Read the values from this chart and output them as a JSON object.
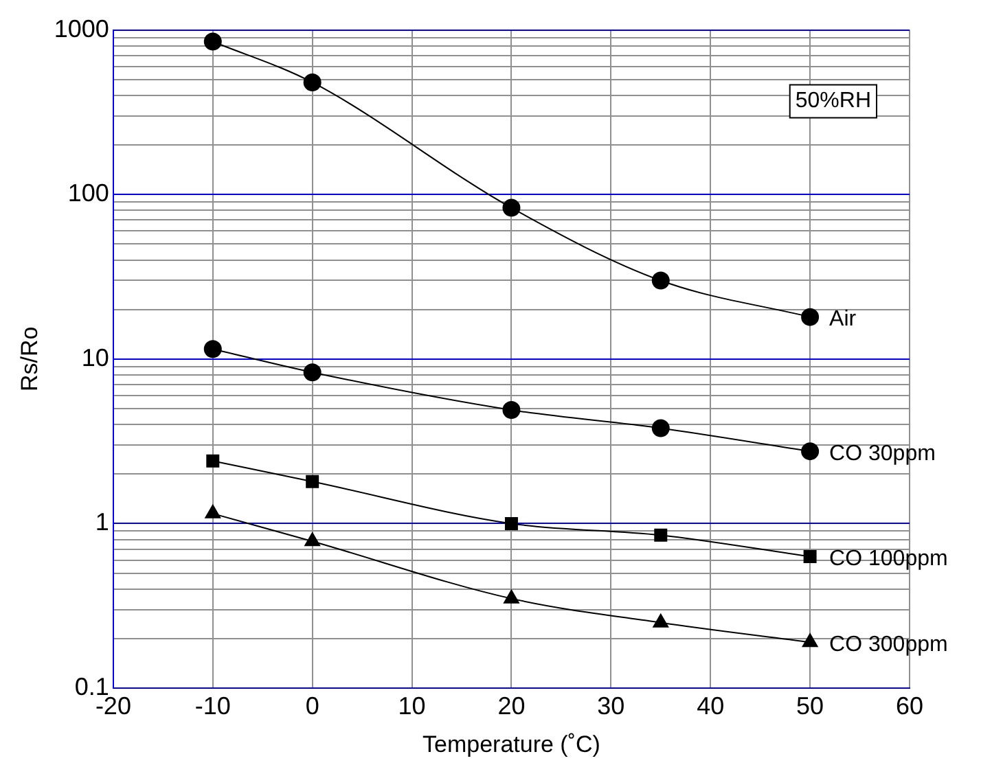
{
  "chart_data": {
    "type": "line",
    "xlabel": "Temperature (˚C)",
    "ylabel": "Rs/Ro",
    "log": "y",
    "grid": true,
    "legend": false,
    "line_style": "solid",
    "x": [
      -10,
      0,
      20,
      35,
      50
    ],
    "xlim": [
      -20,
      60
    ],
    "xticks": [
      -20,
      -10,
      0,
      10,
      20,
      30,
      40,
      50,
      60
    ],
    "ylim": [
      0.1,
      1000
    ],
    "yticks": [
      0.1,
      {
        "value": 0.2,
        "label": null
      },
      {
        "value": 0.3,
        "label": null
      },
      {
        "value": 0.4,
        "label": null
      },
      {
        "value": 0.5,
        "label": null
      },
      {
        "value": 0.6,
        "label": null
      },
      {
        "value": 0.7,
        "label": null
      },
      {
        "value": 0.8,
        "label": null
      },
      {
        "value": 0.9,
        "label": null
      },
      1,
      {
        "value": 2,
        "label": null
      },
      {
        "value": 3,
        "label": null
      },
      {
        "value": 4,
        "label": null
      },
      {
        "value": 5,
        "label": null
      },
      {
        "value": 6,
        "label": null
      },
      {
        "value": 7,
        "label": null
      },
      {
        "value": 8,
        "label": null
      },
      {
        "value": 9,
        "label": null
      },
      10,
      {
        "value": 20,
        "label": null
      },
      {
        "value": 30,
        "label": null
      },
      {
        "value": 40,
        "label": null
      },
      {
        "value": 50,
        "label": null
      },
      {
        "value": 60,
        "label": null
      },
      {
        "value": 70,
        "label": null
      },
      {
        "value": 80,
        "label": null
      },
      {
        "value": 90,
        "label": null
      },
      100,
      {
        "value": 200,
        "label": null
      },
      {
        "value": 300,
        "label": null
      },
      {
        "value": 400,
        "label": null
      },
      {
        "value": 500,
        "label": null
      },
      {
        "value": 600,
        "label": null
      },
      {
        "value": 700,
        "label": null
      },
      {
        "value": 800,
        "label": null
      },
      {
        "value": 900,
        "label": null
      },
      1000
    ],
    "annotations": [
      "50%RH"
    ],
    "series": [
      {
        "name": "Air",
        "color": "#000000",
        "marker": "circle",
        "values": [
          850,
          480,
          83,
          30,
          18
        ]
      },
      {
        "name": "CO 30ppm",
        "color": "#000000",
        "marker": "circle",
        "values": [
          11.5,
          8.3,
          4.9,
          3.8,
          2.75
        ]
      },
      {
        "name": "CO 100ppm",
        "color": "#000000",
        "marker": "square",
        "values": [
          2.4,
          1.8,
          1.0,
          0.85,
          0.63
        ]
      },
      {
        "name": "CO 300ppm",
        "color": "#000000",
        "marker": "triangle",
        "values": [
          1.15,
          0.78,
          0.35,
          0.25,
          0.19
        ]
      }
    ]
  }
}
